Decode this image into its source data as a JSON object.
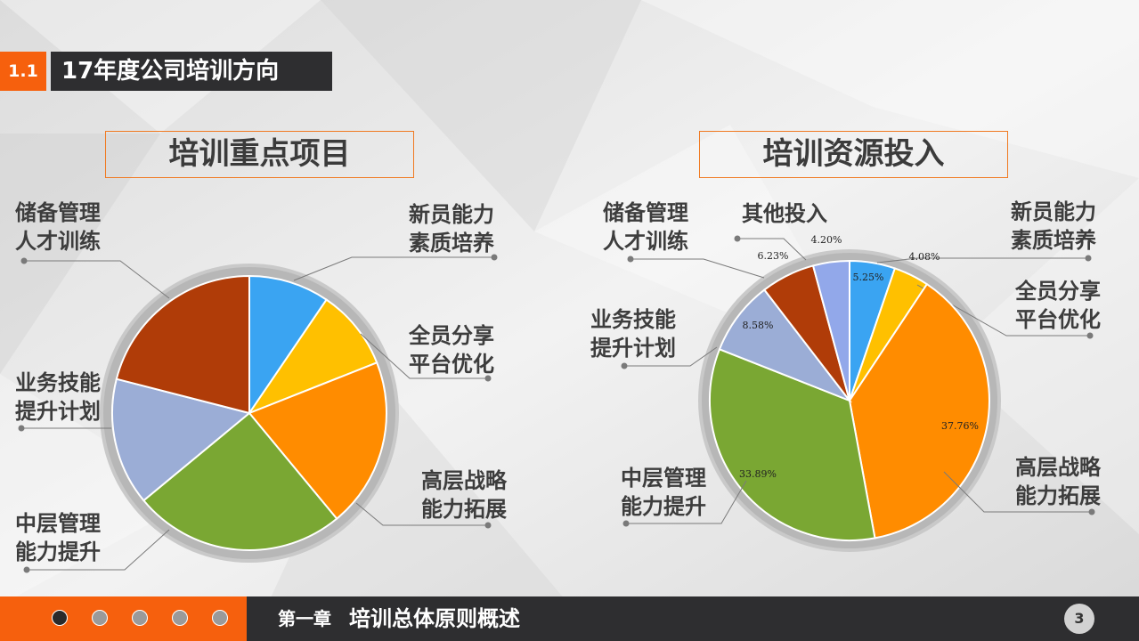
{
  "header": {
    "section_number": "1.1",
    "title": "17年度公司培训方向"
  },
  "footer": {
    "chapter_label": "第一章",
    "chapter_title": "培训总体原则概述",
    "page_number": "3",
    "nav_dots": 5,
    "active_dot": 0
  },
  "colors": {
    "accent": "#f6600d",
    "dark": "#2e2e30"
  },
  "chart_data": [
    {
      "type": "pie",
      "title": "培训重点项目",
      "slices": [
        {
          "name": "新员能力素质培养",
          "label_lines": [
            "新员能力",
            "素质培养"
          ],
          "value": 9.5,
          "color": "#3aa4f2"
        },
        {
          "name": "全员分享平台优化",
          "label_lines": [
            "全员分享",
            "平台优化"
          ],
          "value": 9.5,
          "color": "#ffc000"
        },
        {
          "name": "高层战略能力拓展",
          "label_lines": [
            "高层战略",
            "能力拓展"
          ],
          "value": 20,
          "color": "#ff8c00"
        },
        {
          "name": "中层管理能力提升",
          "label_lines": [
            "中层管理",
            "能力提升"
          ],
          "value": 25,
          "color": "#7aa733"
        },
        {
          "name": "业务技能提升计划",
          "label_lines": [
            "业务技能",
            "提升计划"
          ],
          "value": 15,
          "color": "#9badd6"
        },
        {
          "name": "储备管理人才训练",
          "label_lines": [
            "储备管理",
            "人才训练"
          ],
          "value": 21,
          "color": "#b03c08"
        }
      ]
    },
    {
      "type": "pie",
      "title": "培训资源投入",
      "slices": [
        {
          "name": "新员能力素质培养",
          "label_lines": [
            "新员能力",
            "素质培养"
          ],
          "value": 5.25,
          "pct_label": "5.25%",
          "color": "#3aa4f2"
        },
        {
          "name": "全员分享平台优化",
          "label_lines": [
            "全员分享",
            "平台优化"
          ],
          "value": 4.08,
          "pct_label": "4.08%",
          "color": "#ffc000"
        },
        {
          "name": "高层战略能力拓展",
          "label_lines": [
            "高层战略",
            "能力拓展"
          ],
          "value": 37.76,
          "pct_label": "37.76%",
          "color": "#ff8c00"
        },
        {
          "name": "中层管理能力提升",
          "label_lines": [
            "中层管理",
            "能力提升"
          ],
          "value": 33.89,
          "pct_label": "33.89%",
          "color": "#7aa733"
        },
        {
          "name": "业务技能提升计划",
          "label_lines": [
            "业务技能",
            "提升计划"
          ],
          "value": 8.58,
          "pct_label": "8.58%",
          "color": "#9badd6"
        },
        {
          "name": "储备管理人才训练",
          "label_lines": [
            "储备管理",
            "人才训练"
          ],
          "value": 6.23,
          "pct_label": "6.23%",
          "color": "#b03c08"
        },
        {
          "name": "其他投入",
          "label_lines": [
            "其他投入"
          ],
          "value": 4.2,
          "pct_label": "4.20%",
          "color": "#92a8ea"
        }
      ]
    }
  ]
}
